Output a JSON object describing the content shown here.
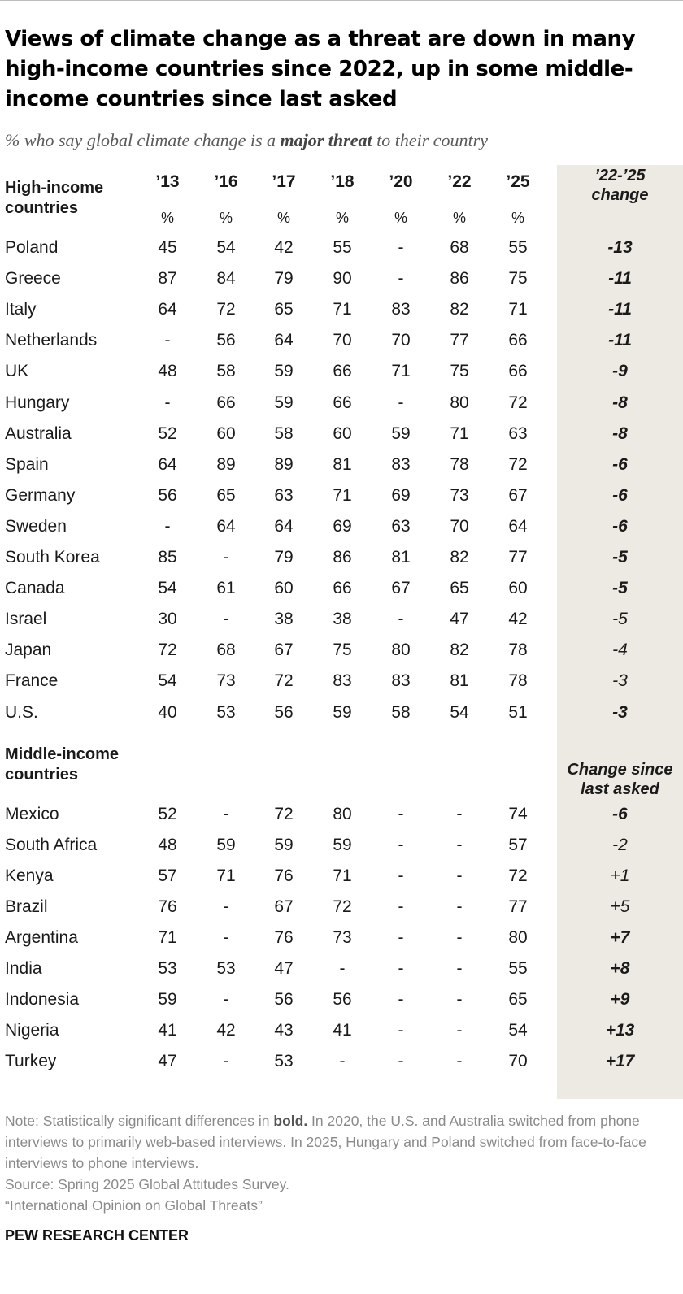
{
  "title": "Views of climate change as a threat are down in many high-income countries since 2022, up in some middle-income countries since last asked",
  "subtitle": {
    "pre": "% who say global climate change is a ",
    "bold": "major threat",
    "post": " to their country"
  },
  "chart_data": {
    "type": "table",
    "years": [
      "’13",
      "’16",
      "’17",
      "’18",
      "’20",
      "’22",
      "’25"
    ],
    "unit_label": "%",
    "groups": [
      {
        "label": "High-income countries",
        "change_header": "’22-’25 change",
        "rows": [
          {
            "country": "Poland",
            "values": [
              "45",
              "54",
              "42",
              "55",
              "-",
              "68",
              "55"
            ],
            "change": "-13",
            "significant": true
          },
          {
            "country": "Greece",
            "values": [
              "87",
              "84",
              "79",
              "90",
              "-",
              "86",
              "75"
            ],
            "change": "-11",
            "significant": true
          },
          {
            "country": "Italy",
            "values": [
              "64",
              "72",
              "65",
              "71",
              "83",
              "82",
              "71"
            ],
            "change": "-11",
            "significant": true
          },
          {
            "country": "Netherlands",
            "values": [
              "-",
              "56",
              "64",
              "70",
              "70",
              "77",
              "66"
            ],
            "change": "-11",
            "significant": true
          },
          {
            "country": "UK",
            "values": [
              "48",
              "58",
              "59",
              "66",
              "71",
              "75",
              "66"
            ],
            "change": "-9",
            "significant": true
          },
          {
            "country": "Hungary",
            "values": [
              "-",
              "66",
              "59",
              "66",
              "-",
              "80",
              "72"
            ],
            "change": "-8",
            "significant": true
          },
          {
            "country": "Australia",
            "values": [
              "52",
              "60",
              "58",
              "60",
              "59",
              "71",
              "63"
            ],
            "change": "-8",
            "significant": true
          },
          {
            "country": "Spain",
            "values": [
              "64",
              "89",
              "89",
              "81",
              "83",
              "78",
              "72"
            ],
            "change": "-6",
            "significant": true
          },
          {
            "country": "Germany",
            "values": [
              "56",
              "65",
              "63",
              "71",
              "69",
              "73",
              "67"
            ],
            "change": "-6",
            "significant": true
          },
          {
            "country": "Sweden",
            "values": [
              "-",
              "64",
              "64",
              "69",
              "63",
              "70",
              "64"
            ],
            "change": "-6",
            "significant": true
          },
          {
            "country": "South Korea",
            "values": [
              "85",
              "-",
              "79",
              "86",
              "81",
              "82",
              "77"
            ],
            "change": "-5",
            "significant": true
          },
          {
            "country": "Canada",
            "values": [
              "54",
              "61",
              "60",
              "66",
              "67",
              "65",
              "60"
            ],
            "change": "-5",
            "significant": true
          },
          {
            "country": "Israel",
            "values": [
              "30",
              "-",
              "38",
              "38",
              "-",
              "47",
              "42"
            ],
            "change": "-5",
            "significant": false
          },
          {
            "country": "Japan",
            "values": [
              "72",
              "68",
              "67",
              "75",
              "80",
              "82",
              "78"
            ],
            "change": "-4",
            "significant": false
          },
          {
            "country": "France",
            "values": [
              "54",
              "73",
              "72",
              "83",
              "83",
              "81",
              "78"
            ],
            "change": "-3",
            "significant": false
          },
          {
            "country": "U.S.",
            "values": [
              "40",
              "53",
              "56",
              "59",
              "58",
              "54",
              "51"
            ],
            "change": "-3",
            "significant": true
          }
        ]
      },
      {
        "label": "Middle-income countries",
        "change_header": "Change since last asked",
        "rows": [
          {
            "country": "Mexico",
            "values": [
              "52",
              "-",
              "72",
              "80",
              "-",
              "-",
              "74"
            ],
            "change": "-6",
            "significant": true
          },
          {
            "country": "South Africa",
            "values": [
              "48",
              "59",
              "59",
              "59",
              "-",
              "-",
              "57"
            ],
            "change": "-2",
            "significant": false
          },
          {
            "country": "Kenya",
            "values": [
              "57",
              "71",
              "76",
              "71",
              "-",
              "-",
              "72"
            ],
            "change": "+1",
            "significant": false
          },
          {
            "country": "Brazil",
            "values": [
              "76",
              "-",
              "67",
              "72",
              "-",
              "-",
              "77"
            ],
            "change": "+5",
            "significant": false
          },
          {
            "country": "Argentina",
            "values": [
              "71",
              "-",
              "76",
              "73",
              "-",
              "-",
              "80"
            ],
            "change": "+7",
            "significant": true
          },
          {
            "country": "India",
            "values": [
              "53",
              "53",
              "47",
              "-",
              "-",
              "-",
              "55"
            ],
            "change": "+8",
            "significant": true
          },
          {
            "country": "Indonesia",
            "values": [
              "59",
              "-",
              "56",
              "56",
              "-",
              "-",
              "65"
            ],
            "change": "+9",
            "significant": true
          },
          {
            "country": "Nigeria",
            "values": [
              "41",
              "42",
              "43",
              "41",
              "-",
              "-",
              "54"
            ],
            "change": "+13",
            "significant": true
          },
          {
            "country": "Turkey",
            "values": [
              "47",
              "-",
              "53",
              "-",
              "-",
              "-",
              "70"
            ],
            "change": "+17",
            "significant": true
          }
        ]
      }
    ]
  },
  "notes": {
    "note_pre": "Note: Statistically significant differences in ",
    "note_bold": "bold.",
    "note_post": " In 2020, the U.S. and Australia switched from phone interviews to primarily web-based interviews. In 2025, Hungary and Poland switched from face-to-face interviews to phone interviews.",
    "source": "Source: Spring 2025 Global Attitudes Survey.",
    "report": "“International Opinion on Global Threats”"
  },
  "brand": "PEW RESEARCH CENTER",
  "colors": {
    "change_column_bg": "#edeae3",
    "subtitle": "#5a5a5a",
    "note": "#8a8a8a"
  }
}
